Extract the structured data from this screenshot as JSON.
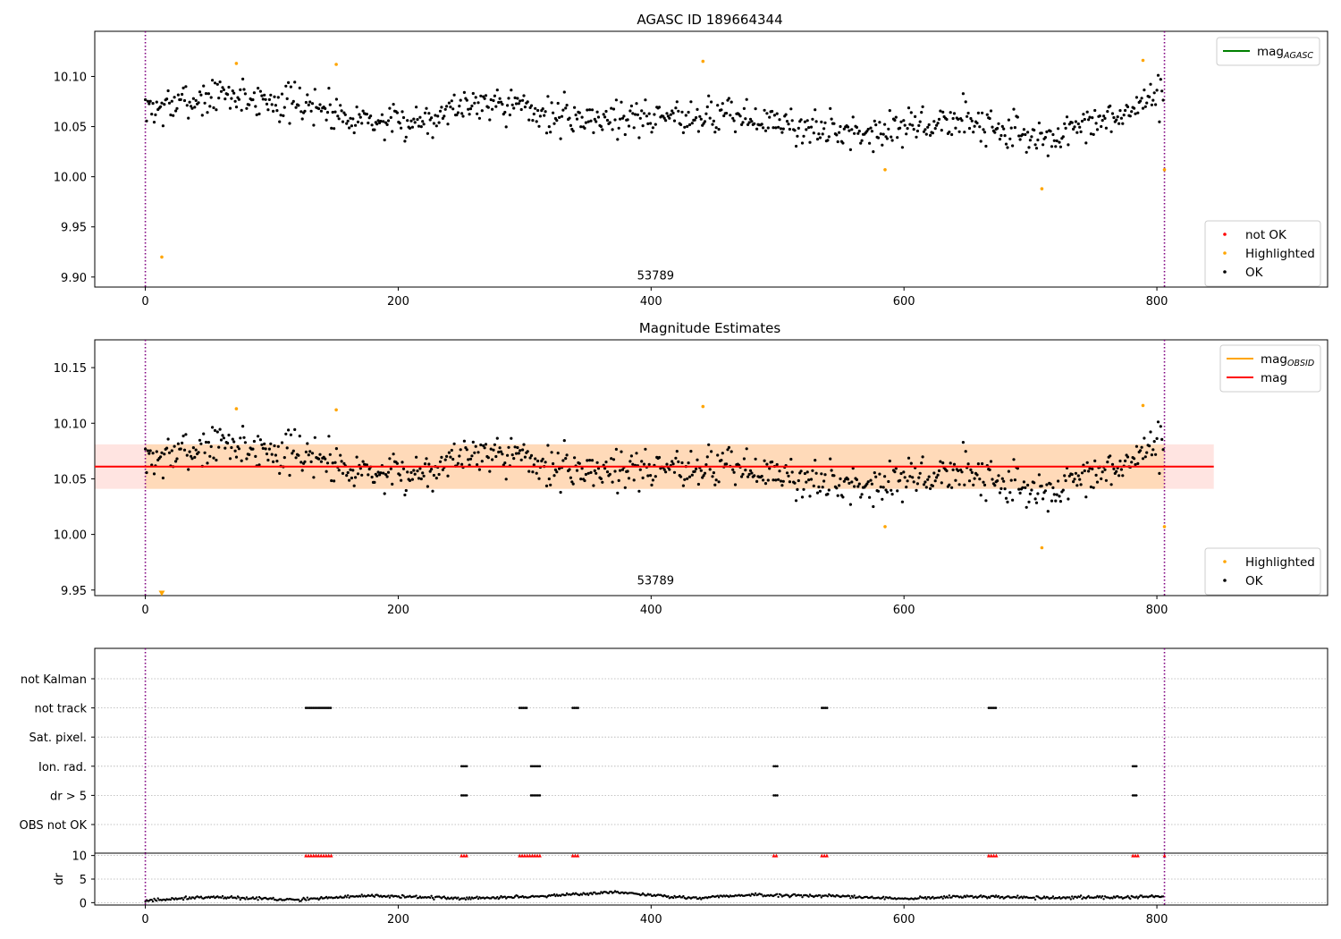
{
  "colors": {
    "ok": "#000000",
    "highlighted": "#ffa500",
    "not_ok": "#ff0000",
    "mag_agasc": "#008000",
    "mag_obsid": "#ffa500",
    "mag": "#ff0000",
    "band_inner": "#ffdab9",
    "band_outer": "#ffe4e1",
    "vline": "#800080",
    "grid": "#b0b0b0"
  },
  "chart_data": [
    {
      "type": "scatter",
      "title": "AGASC ID 189664344",
      "xlabel": "",
      "ylabel": "",
      "xlim": [
        -40,
        935
      ],
      "ylim": [
        9.89,
        10.145
      ],
      "xticks": [
        0,
        200,
        400,
        600,
        800
      ],
      "yticks": [
        9.9,
        9.95,
        10.0,
        10.05,
        10.1
      ],
      "annotation": {
        "text": "53789",
        "x": 400,
        "y": 9.894
      },
      "vlines": [
        0,
        806
      ],
      "legend_lines": [
        {
          "label": "mag",
          "sub": "AGASC",
          "color": "#008000"
        }
      ],
      "legend_points": [
        {
          "label": "not OK",
          "color": "#ff0000"
        },
        {
          "label": "Highlighted",
          "color": "#ffa500"
        },
        {
          "label": "OK",
          "color": "#000000"
        }
      ],
      "highlighted_points": [
        [
          13,
          9.92
        ],
        [
          72,
          10.113
        ],
        [
          151,
          10.112
        ],
        [
          441,
          10.115
        ],
        [
          585,
          10.007
        ],
        [
          709,
          9.988
        ],
        [
          789,
          10.116
        ],
        [
          806,
          10.007
        ]
      ],
      "ok_series": {
        "n": 805,
        "x_max": 805,
        "seed": 7,
        "scatter": 0.018,
        "baseline": [
          [
            0,
            10.066
          ],
          [
            60,
            10.082
          ],
          [
            130,
            10.071
          ],
          [
            200,
            10.051
          ],
          [
            270,
            10.078
          ],
          [
            330,
            10.058
          ],
          [
            400,
            10.06
          ],
          [
            460,
            10.062
          ],
          [
            540,
            10.045
          ],
          [
            600,
            10.048
          ],
          [
            650,
            10.058
          ],
          [
            710,
            10.036
          ],
          [
            760,
            10.055
          ],
          [
            800,
            10.079
          ]
        ]
      },
      "mag_line": null
    },
    {
      "type": "scatter",
      "title": "Magnitude Estimates",
      "xlabel": "",
      "ylabel": "",
      "xlim": [
        -40,
        935
      ],
      "ylim": [
        9.945,
        10.175
      ],
      "xticks": [
        0,
        200,
        400,
        600,
        800
      ],
      "yticks": [
        9.95,
        10.0,
        10.05,
        10.1,
        10.15
      ],
      "annotation": {
        "text": "53789",
        "x": 400,
        "y": 9.952
      },
      "vlines": [
        0,
        806
      ],
      "legend_lines": [
        {
          "label": "mag",
          "sub": "OBSID",
          "color": "#ffa500"
        },
        {
          "label": "mag",
          "sub": "",
          "color": "#ff0000"
        }
      ],
      "legend_points": [
        {
          "label": "Highlighted",
          "color": "#ffa500"
        },
        {
          "label": "OK",
          "color": "#000000"
        }
      ],
      "highlighted_points": [
        [
          72,
          10.113
        ],
        [
          151,
          10.112
        ],
        [
          441,
          10.115
        ],
        [
          585,
          10.007
        ],
        [
          709,
          9.988
        ],
        [
          789,
          10.116
        ],
        [
          806,
          10.007
        ]
      ],
      "triangle_points": [
        [
          13,
          9.947
        ]
      ],
      "ok_series": {
        "n": 805,
        "x_max": 805,
        "seed": 7,
        "scatter": 0.018,
        "baseline": [
          [
            0,
            10.066
          ],
          [
            60,
            10.082
          ],
          [
            130,
            10.071
          ],
          [
            200,
            10.051
          ],
          [
            270,
            10.078
          ],
          [
            330,
            10.058
          ],
          [
            400,
            10.06
          ],
          [
            460,
            10.062
          ],
          [
            540,
            10.045
          ],
          [
            600,
            10.048
          ],
          [
            650,
            10.058
          ],
          [
            710,
            10.036
          ],
          [
            760,
            10.055
          ],
          [
            800,
            10.079
          ]
        ]
      },
      "mag_line": {
        "value": 10.061,
        "x_range": [
          -40,
          845
        ],
        "band_inner": [
          10.041,
          10.081
        ],
        "band_inner_x": [
          0,
          806
        ],
        "band_outer_x": [
          -40,
          845
        ]
      }
    },
    {
      "type": "scatter",
      "title": "",
      "xlabel": "",
      "ylabel": "",
      "xlim": [
        -40,
        935
      ],
      "xticks": [
        0,
        200,
        400,
        600,
        800
      ],
      "vlines": [
        0,
        806
      ],
      "flag_rows": [
        {
          "label": "not Kalman",
          "segments": []
        },
        {
          "label": "not track",
          "segments": [
            [
              127,
              147
            ],
            [
              296,
              302
            ],
            [
              338,
              343
            ],
            [
              535,
              540
            ],
            [
              667,
              673
            ]
          ]
        },
        {
          "label": "Sat. pixel.",
          "segments": []
        },
        {
          "label": "Ion. rad.",
          "segments": [
            [
              250,
              255
            ],
            [
              305,
              313
            ],
            [
              497,
              500
            ],
            [
              781,
              785
            ]
          ]
        },
        {
          "label": "dr > 5",
          "segments": [
            [
              250,
              255
            ],
            [
              305,
              313
            ],
            [
              497,
              500
            ],
            [
              781,
              785
            ]
          ]
        },
        {
          "label": "OBS not OK",
          "segments": []
        }
      ],
      "dr_panel": {
        "ylabel": "dr",
        "ylim": [
          -0.5,
          10.5
        ],
        "yticks": [
          0,
          5,
          10
        ],
        "red_marks": [
          [
            127,
            147
          ],
          [
            250,
            255
          ],
          [
            296,
            313
          ],
          [
            338,
            343
          ],
          [
            497,
            500
          ],
          [
            535,
            540
          ],
          [
            667,
            673
          ],
          [
            781,
            785
          ],
          [
            806,
            806
          ]
        ],
        "dr_series": {
          "n": 805,
          "x_max": 805,
          "seed": 11,
          "baseline": [
            [
              0,
              0.5
            ],
            [
              50,
              1.2
            ],
            [
              120,
              0.6
            ],
            [
              180,
              1.5
            ],
            [
              250,
              0.9
            ],
            [
              300,
              1.2
            ],
            [
              370,
              2.2
            ],
            [
              430,
              1.0
            ],
            [
              480,
              1.6
            ],
            [
              540,
              1.4
            ],
            [
              600,
              0.8
            ],
            [
              650,
              1.3
            ],
            [
              720,
              1.0
            ],
            [
              800,
              1.3
            ]
          ]
        }
      }
    }
  ]
}
